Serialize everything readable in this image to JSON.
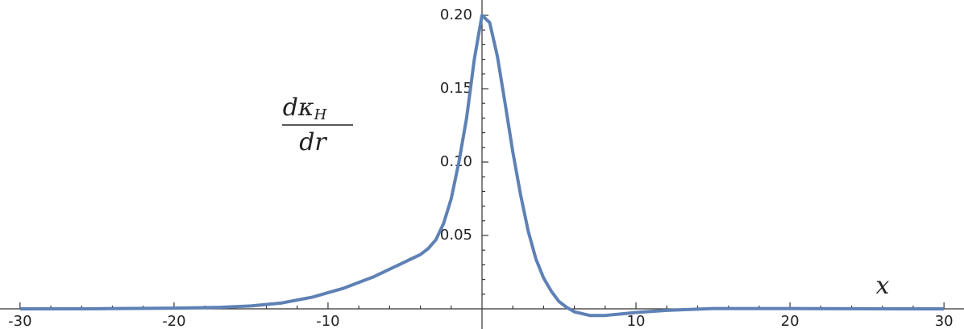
{
  "chart_data": {
    "type": "line",
    "x": [
      -30,
      -25,
      -20,
      -17,
      -15,
      -13,
      -11,
      -10,
      -9,
      -8,
      -7,
      -6,
      -5,
      -4,
      -3.5,
      -3,
      -2.5,
      -2,
      -1.5,
      -1,
      -0.5,
      0,
      0.5,
      1,
      1.5,
      2,
      2.5,
      3,
      3.5,
      4,
      4.5,
      5,
      5.5,
      6,
      7,
      8,
      9,
      10,
      12,
      15,
      20,
      25,
      30
    ],
    "series": [
      {
        "color": "#5e81b5",
        "values": [
          0,
          0.0001,
          0.0005,
          0.001,
          0.002,
          0.004,
          0.008,
          0.011,
          0.014,
          0.018,
          0.022,
          0.027,
          0.032,
          0.037,
          0.041,
          0.047,
          0.058,
          0.075,
          0.1,
          0.13,
          0.17,
          0.2,
          0.195,
          0.172,
          0.14,
          0.107,
          0.078,
          0.053,
          0.034,
          0.021,
          0.012,
          0.005,
          0.001,
          -0.002,
          -0.0045,
          -0.0045,
          -0.0035,
          -0.0025,
          -0.001,
          0.0002,
          0.0002,
          0.0001,
          0
        ]
      }
    ],
    "xlabel": "x",
    "ylabel": {
      "numerator": "dκ",
      "subscript": "H",
      "denominator": "dr"
    },
    "xlim": [
      -31.3,
      31.3
    ],
    "ylim": [
      -0.01,
      0.2
    ],
    "xticks": [
      -30,
      -20,
      -10,
      10,
      20,
      30
    ],
    "yticks": [
      0.05,
      {
        "value": 0.1,
        "label": "0.10"
      },
      0.15,
      {
        "value": 0.2,
        "label": "0.20"
      }
    ],
    "xminorticks": [
      -28,
      -26,
      -24,
      -22,
      -18,
      -16,
      -14,
      -12,
      -8,
      -6,
      -4,
      -2,
      2,
      4,
      6,
      8,
      12,
      14,
      16,
      18,
      22,
      24,
      26,
      28
    ],
    "yminorticks": [
      0.01,
      0.02,
      0.03,
      0.04,
      0.06,
      0.07,
      0.08,
      0.09,
      0.11,
      0.12,
      0.13,
      0.14,
      0.16,
      0.17,
      0.18,
      0.19
    ]
  }
}
